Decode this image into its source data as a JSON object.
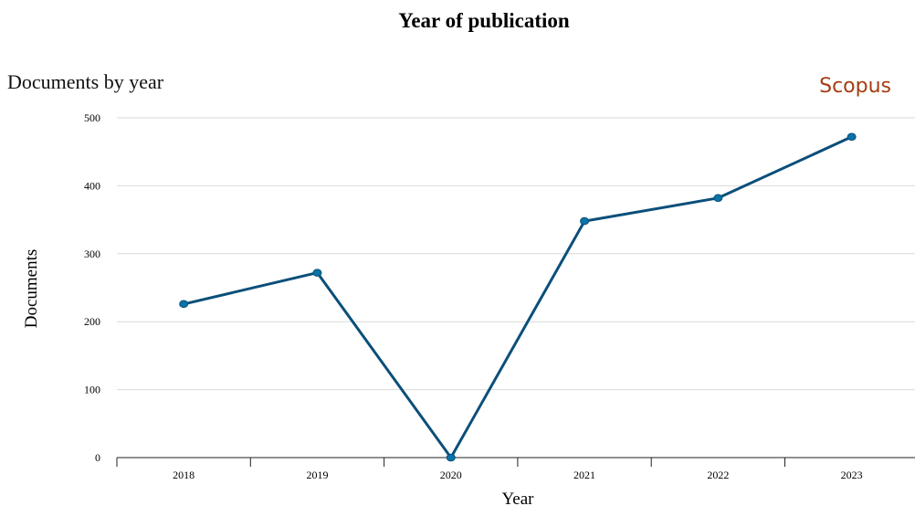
{
  "header": {
    "title": "Year of publication",
    "subtitle": "Documents by year",
    "brand": "Scopus"
  },
  "colors": {
    "line": "#0b4f7a",
    "marker": "#0a73a8",
    "brand": "#a53c12"
  },
  "chart_data": {
    "type": "line",
    "title": "Documents by year",
    "xlabel": "Year",
    "ylabel": "Documents",
    "categories": [
      "2018",
      "2019",
      "2020",
      "2021",
      "2022",
      "2023"
    ],
    "series": [
      {
        "values": [
          226,
          272,
          0,
          348,
          382,
          472
        ]
      }
    ],
    "ylim": [
      0,
      500
    ],
    "yticks": [
      "0",
      "100",
      "200",
      "300",
      "400",
      "500"
    ],
    "grid": true,
    "legend": "none"
  }
}
